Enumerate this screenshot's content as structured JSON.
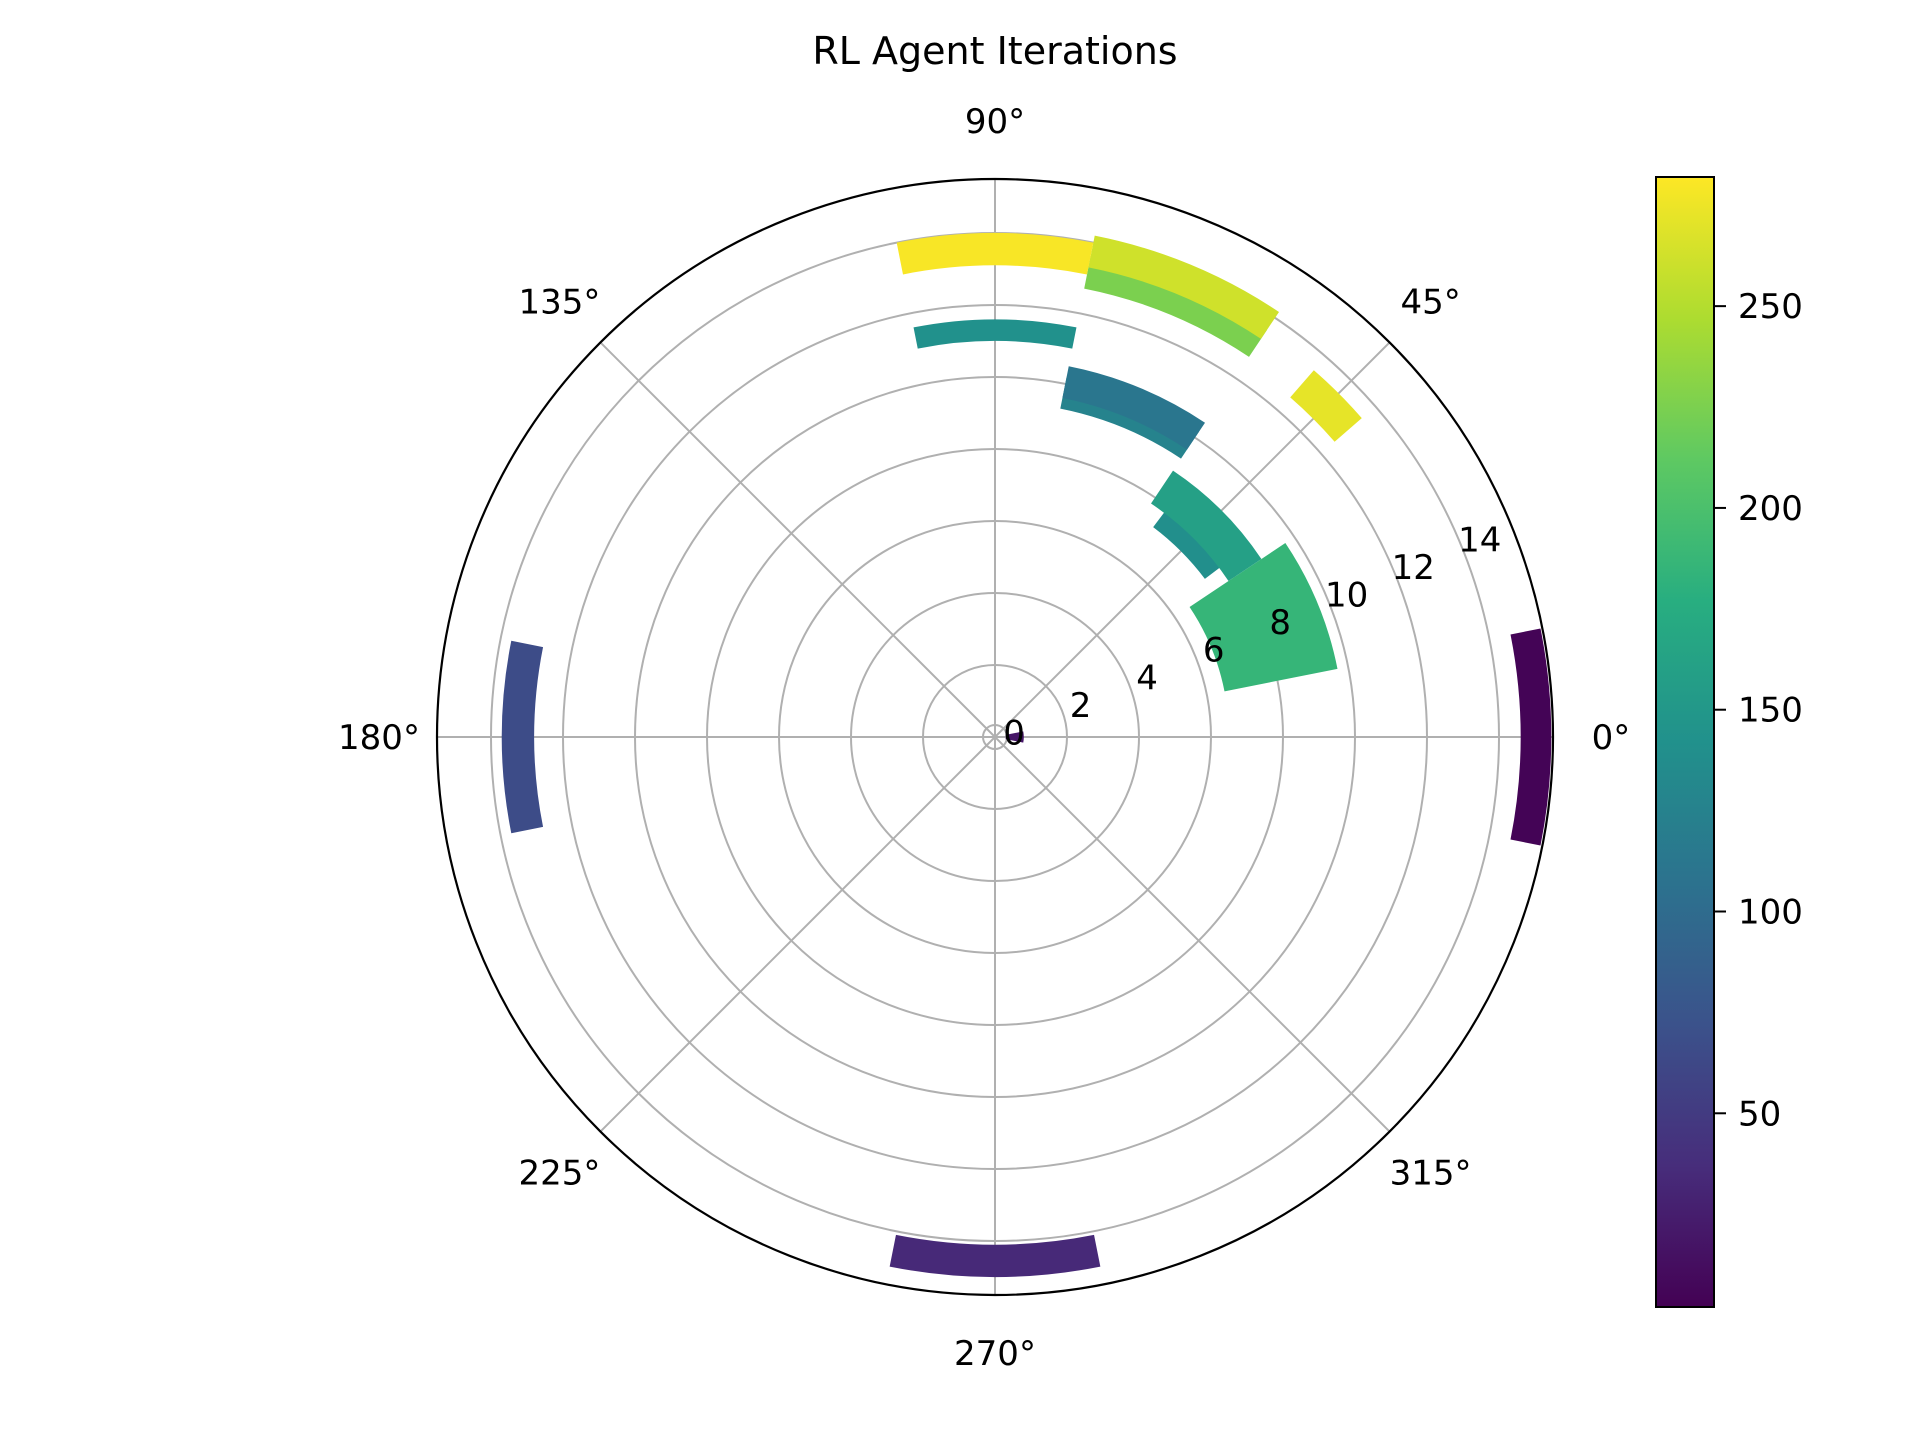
{
  "chart_data": {
    "type": "polar-bar",
    "title": "RL Agent Iterations",
    "angle_ticks": [
      "0°",
      "45°",
      "90°",
      "135°",
      "180°",
      "225°",
      "270°",
      "315°"
    ],
    "radial_ticks": [
      "0",
      "2",
      "4",
      "6",
      "8",
      "10",
      "12",
      "14"
    ],
    "rmax": 15.5,
    "colormap": "viridis",
    "colorbar": {
      "min": 2,
      "max": 282,
      "ticks": [
        "50",
        "100",
        "150",
        "200",
        "250"
      ]
    },
    "bars": [
      {
        "theta_deg": 0,
        "width_deg": 22.5,
        "bottom": 14.6,
        "height": 0.85,
        "value": 4
      },
      {
        "theta_deg": 22.5,
        "width_deg": 22.5,
        "bottom": 6.5,
        "height": 3.2,
        "value": 186
      },
      {
        "theta_deg": 45,
        "width_deg": 16,
        "bottom": 7.3,
        "height": 1.1,
        "value": 140
      },
      {
        "theta_deg": 45,
        "width_deg": 22.5,
        "bottom": 7.8,
        "height": 1.1,
        "value": 160
      },
      {
        "theta_deg": 45,
        "width_deg": 8,
        "bottom": 12.5,
        "height": 1.0,
        "value": 272
      },
      {
        "theta_deg": 67.5,
        "width_deg": 22.5,
        "bottom": 9.3,
        "height": 0.9,
        "value": 126
      },
      {
        "theta_deg": 67.5,
        "width_deg": 22.5,
        "bottom": 9.6,
        "height": 0.9,
        "value": 112
      },
      {
        "theta_deg": 67.5,
        "width_deg": 22.5,
        "bottom": 12.7,
        "height": 0.9,
        "value": 225
      },
      {
        "theta_deg": 67.5,
        "width_deg": 22.5,
        "bottom": 13.3,
        "height": 0.9,
        "value": 262
      },
      {
        "theta_deg": 90,
        "width_deg": 22.5,
        "bottom": 11.0,
        "height": 0.6,
        "value": 142
      },
      {
        "theta_deg": 90,
        "width_deg": 22.5,
        "bottom": 13.1,
        "height": 0.9,
        "value": 280
      },
      {
        "theta_deg": 180,
        "width_deg": 22.5,
        "bottom": 12.8,
        "height": 0.9,
        "value": 66
      },
      {
        "theta_deg": 270,
        "width_deg": 22.5,
        "bottom": 14.1,
        "height": 0.9,
        "value": 34
      },
      {
        "theta_deg": 0,
        "width_deg": 22.5,
        "bottom": 0.3,
        "height": 0.5,
        "value": 18
      }
    ]
  }
}
